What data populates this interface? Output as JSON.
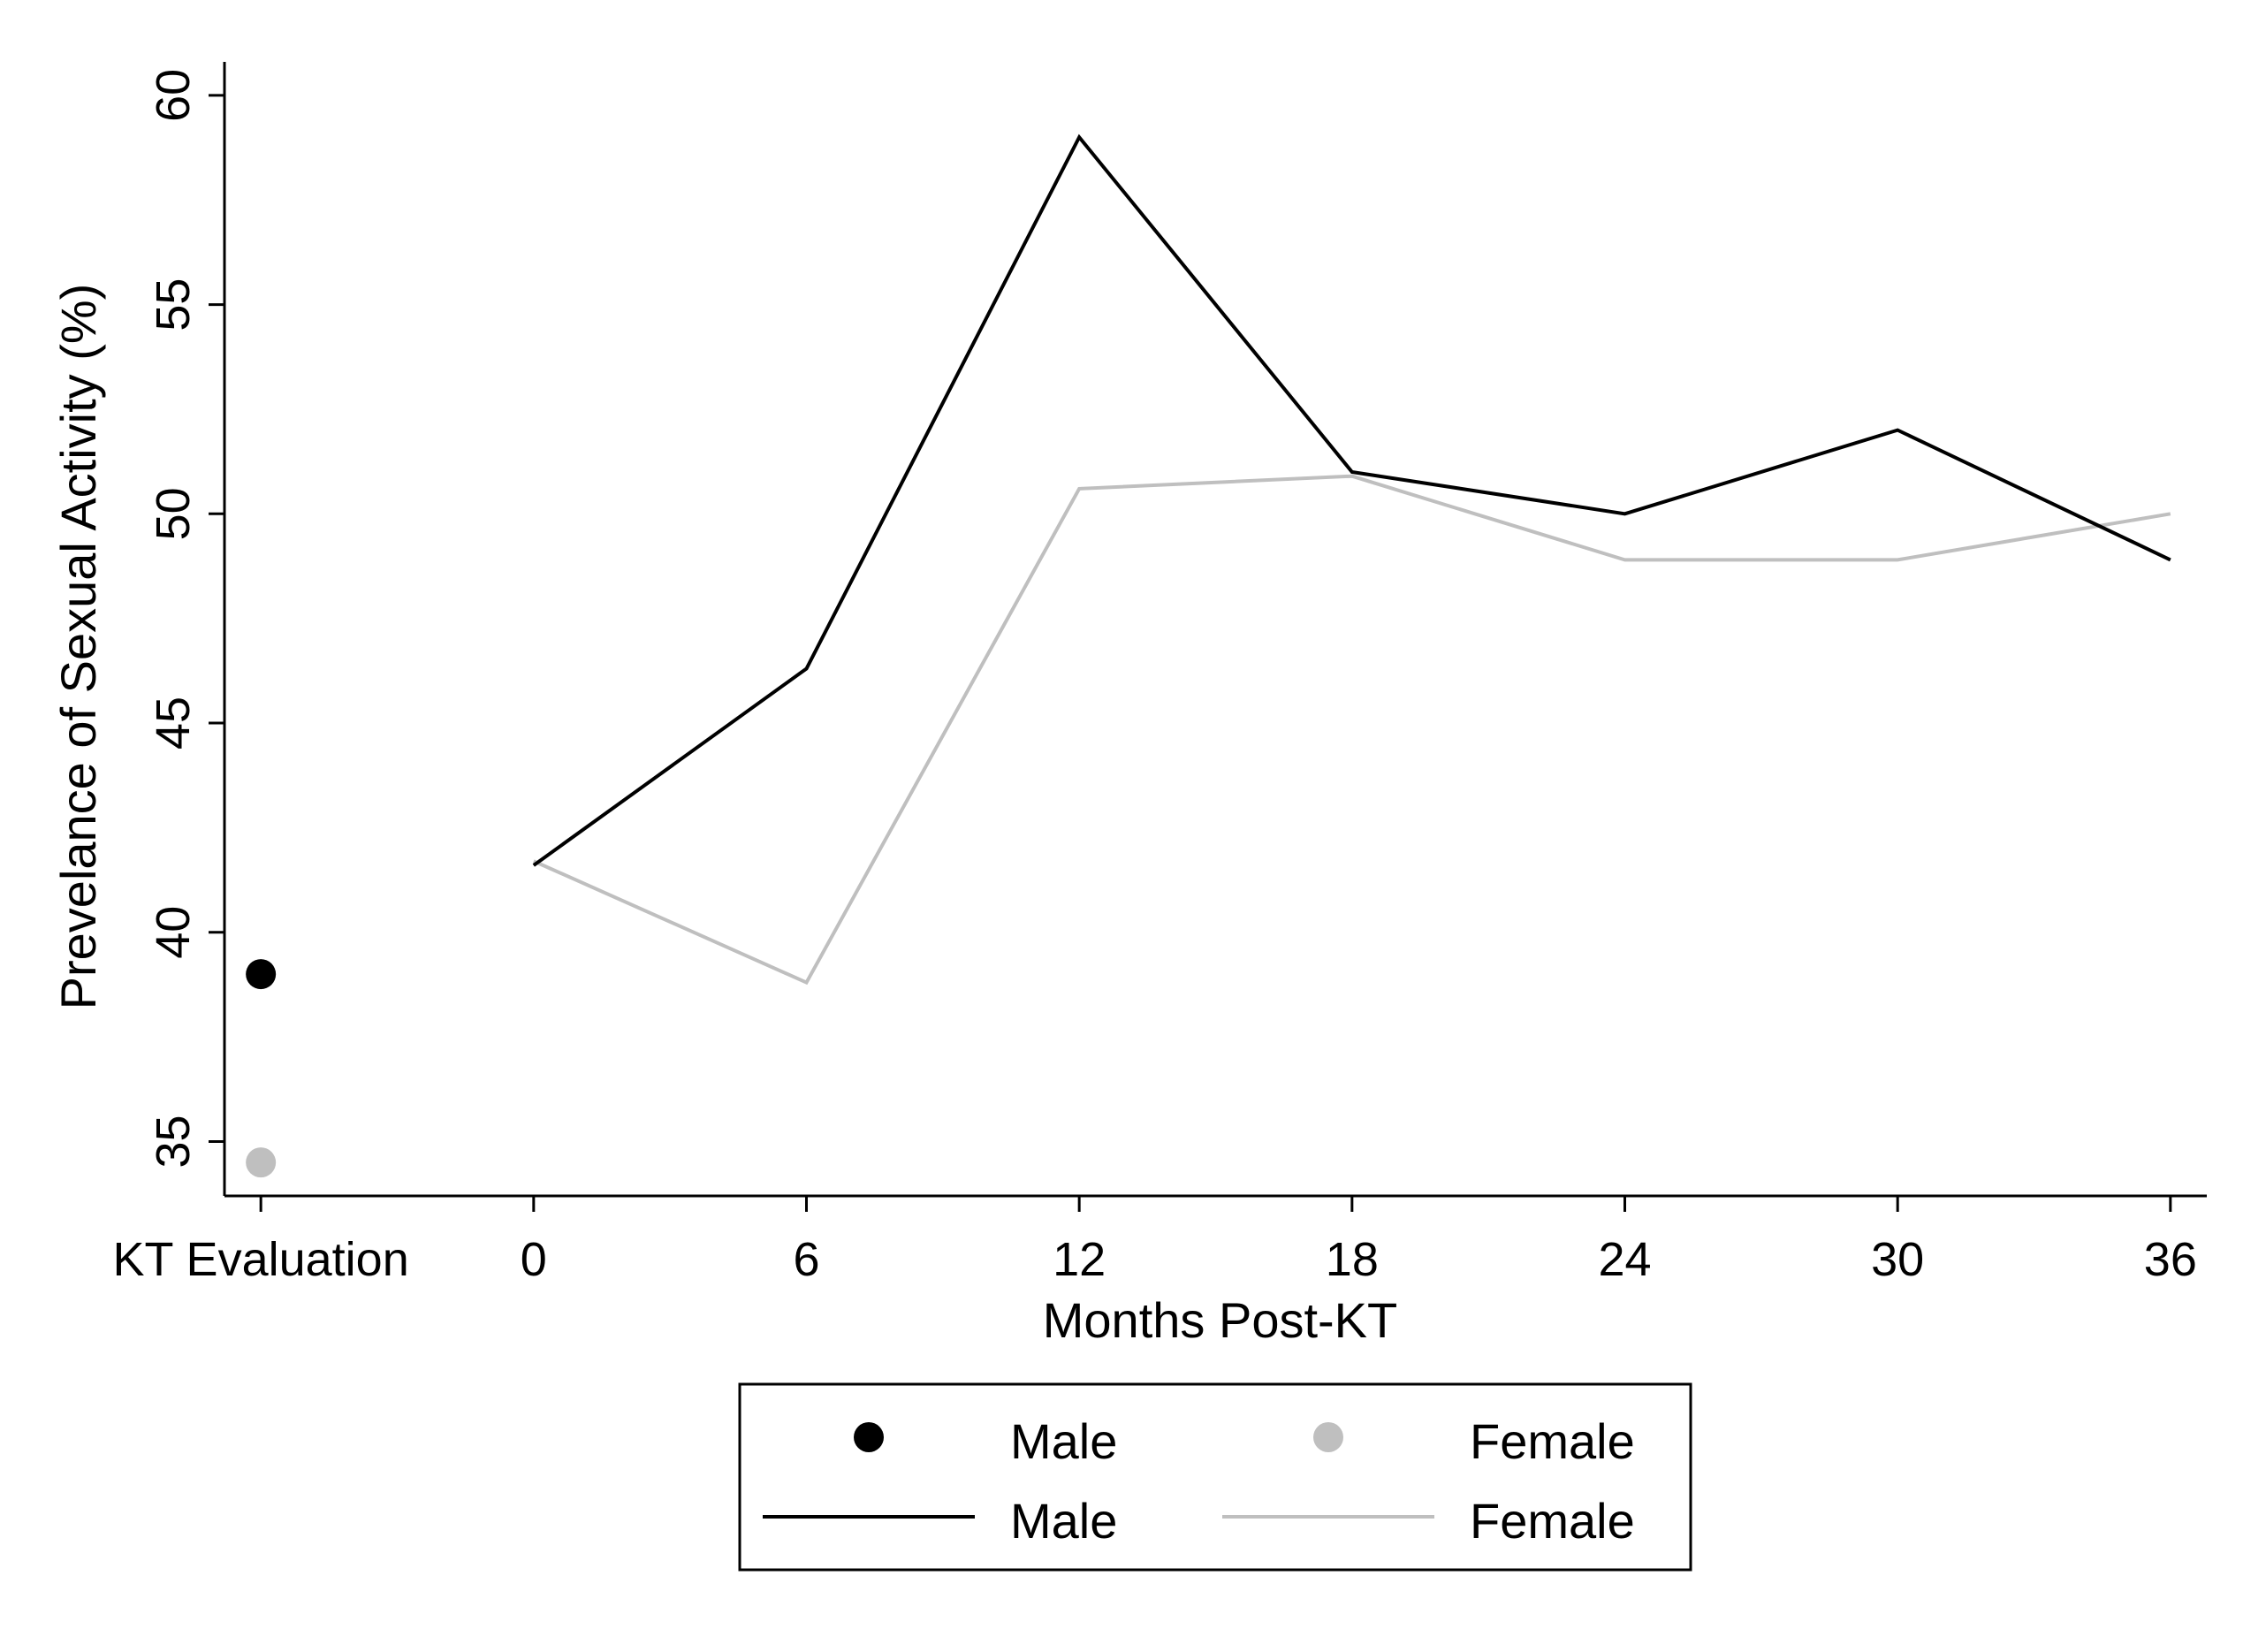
{
  "chart_data": {
    "type": "line",
    "title": "",
    "xlabel": "Months Post-KT",
    "ylabel": "Prevelance of Sexual Activity (%)",
    "ylim": [
      33.7,
      60.8
    ],
    "yticks": [
      35,
      40,
      45,
      50,
      55,
      60
    ],
    "categories": [
      "KT Evaluation",
      "0",
      "6",
      "12",
      "18",
      "24",
      "30",
      "36"
    ],
    "x_positions": [
      -6,
      0,
      6,
      12,
      18,
      24,
      30,
      36
    ],
    "xlim": [
      -6.8,
      36.8
    ],
    "grid": false,
    "legend_position": "bottom",
    "points": [
      {
        "name": "Male",
        "x": "KT Evaluation",
        "value": 39.0,
        "color": "#000000"
      },
      {
        "name": "Female",
        "x": "KT Evaluation",
        "value": 34.5,
        "color": "#bfbfbf"
      }
    ],
    "series": [
      {
        "name": "Male",
        "color": "#000000",
        "x": [
          0,
          6,
          12,
          18,
          24,
          30,
          36
        ],
        "values": [
          41.6,
          46.3,
          59.0,
          51.0,
          50.0,
          52.0,
          48.9
        ]
      },
      {
        "name": "Female",
        "color": "#bfbfbf",
        "x": [
          0,
          6,
          12,
          18,
          24,
          30,
          36
        ],
        "values": [
          41.7,
          38.8,
          50.6,
          50.9,
          48.9,
          48.9,
          50.0
        ]
      }
    ]
  },
  "legend": {
    "row1_left": "Male",
    "row1_right": "Female",
    "row2_left": "Male",
    "row2_right": "Female"
  }
}
